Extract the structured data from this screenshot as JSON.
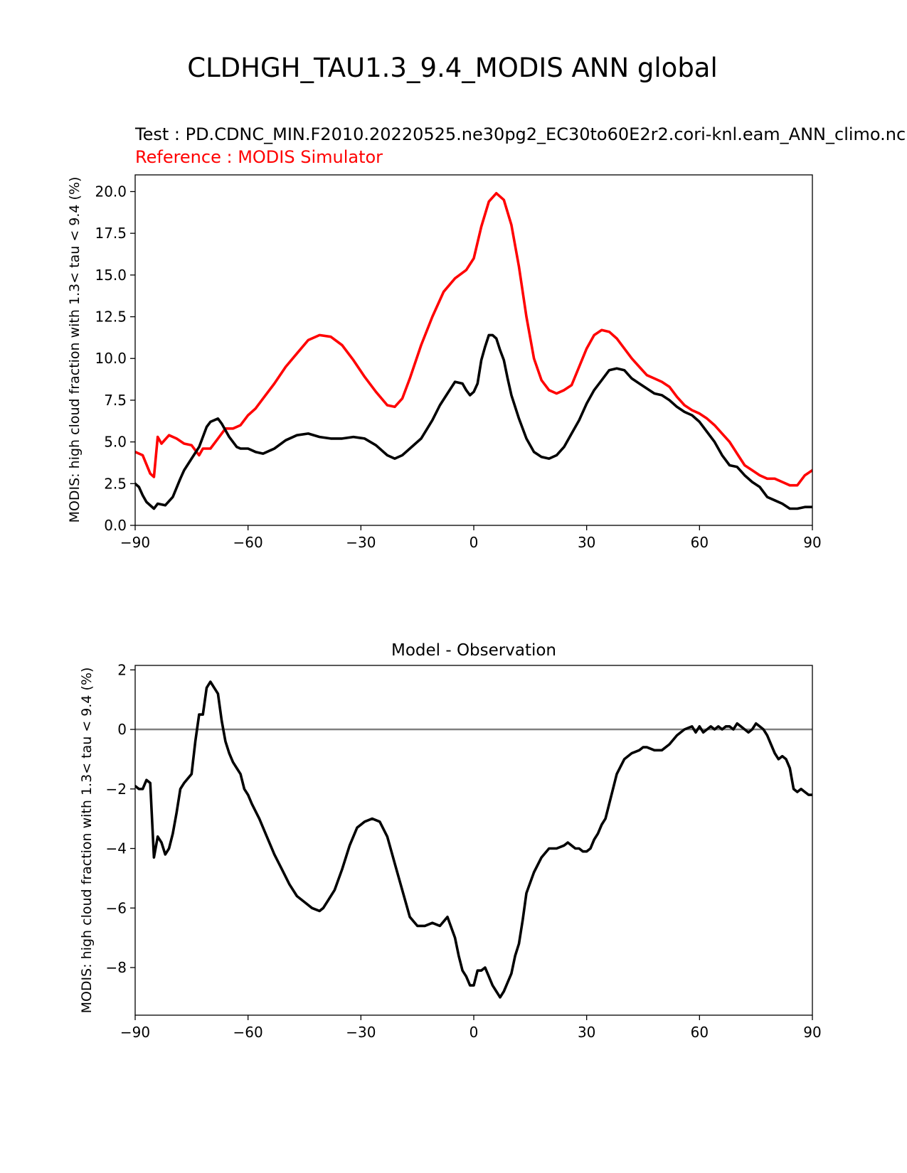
{
  "figure": {
    "suptitle": "CLDHGH_TAU1.3_9.4_MODIS ANN global"
  },
  "colors": {
    "test": "#000000",
    "reference": "#ff0000",
    "zero_line": "#808080"
  },
  "chart_data": [
    {
      "type": "line",
      "title_lines": [
        {
          "text": "Test : PD.CDNC_MIN.F2010.20220525.ne30pg2_EC30to60E2r2.cori-knl.eam_ANN_climo.nc",
          "color": "#000000"
        },
        {
          "text": "Reference : MODIS Simulator",
          "color": "#ff0000"
        }
      ],
      "xlabel": "",
      "ylabel": "MODIS: high cloud fraction with 1.3< tau < 9.4 (%)",
      "xlim": [
        -90,
        90
      ],
      "ylim": [
        0,
        21
      ],
      "xticks": [
        "−90",
        "−60",
        "−30",
        "0",
        "30",
        "60",
        "90"
      ],
      "xtick_values": [
        -90,
        -60,
        -30,
        0,
        30,
        60,
        90
      ],
      "yticks": [
        "0.0",
        "2.5",
        "5.0",
        "7.5",
        "10.0",
        "12.5",
        "15.0",
        "17.5",
        "20.0"
      ],
      "ytick_values": [
        0,
        2.5,
        5,
        7.5,
        10,
        12.5,
        15,
        17.5,
        20
      ],
      "series": [
        {
          "color": "#ff0000",
          "x": [
            -90,
            -88,
            -86,
            -85,
            -84,
            -83,
            -81,
            -79,
            -77,
            -75,
            -73,
            -72,
            -70,
            -68,
            -66,
            -64,
            -62,
            -60,
            -58,
            -56,
            -53,
            -50,
            -47,
            -44,
            -41,
            -38,
            -35,
            -32,
            -29,
            -26,
            -23,
            -21,
            -19,
            -17,
            -14,
            -11,
            -8,
            -5,
            -2,
            0,
            2,
            4,
            6,
            8,
            10,
            12,
            14,
            16,
            18,
            20,
            22,
            24,
            26,
            28,
            30,
            32,
            34,
            36,
            38,
            40,
            42,
            44,
            46,
            48,
            50,
            52,
            54,
            56,
            58,
            60,
            62,
            64,
            66,
            68,
            70,
            72,
            74,
            76,
            78,
            80,
            82,
            84,
            86,
            88,
            90
          ],
          "y": [
            4.4,
            4.2,
            3.1,
            2.9,
            5.3,
            4.9,
            5.4,
            5.2,
            4.9,
            4.8,
            4.2,
            4.6,
            4.6,
            5.2,
            5.8,
            5.8,
            6.0,
            6.6,
            7.0,
            7.6,
            8.5,
            9.5,
            10.3,
            11.1,
            11.4,
            11.3,
            10.8,
            9.9,
            8.9,
            8.0,
            7.2,
            7.1,
            7.6,
            8.8,
            10.8,
            12.5,
            14.0,
            14.8,
            15.3,
            16.0,
            17.9,
            19.4,
            19.9,
            19.5,
            18.0,
            15.5,
            12.5,
            10.0,
            8.7,
            8.1,
            7.9,
            8.1,
            8.4,
            9.5,
            10.6,
            11.4,
            11.7,
            11.6,
            11.2,
            10.6,
            10.0,
            9.5,
            9.0,
            8.8,
            8.6,
            8.3,
            7.7,
            7.2,
            6.9,
            6.7,
            6.4,
            6.0,
            5.5,
            5.0,
            4.3,
            3.6,
            3.3,
            3.0,
            2.8,
            2.8,
            2.6,
            2.4,
            2.4,
            3.0,
            3.3
          ]
        },
        {
          "color": "#000000",
          "x": [
            -90,
            -89,
            -88,
            -87,
            -85,
            -84,
            -82,
            -80,
            -78,
            -77,
            -75,
            -73,
            -71,
            -70,
            -68,
            -67,
            -65,
            -63,
            -62,
            -60,
            -58,
            -56,
            -53,
            -50,
            -47,
            -44,
            -41,
            -38,
            -35,
            -32,
            -29,
            -26,
            -23,
            -21,
            -19,
            -17,
            -14,
            -11,
            -9,
            -7,
            -5,
            -3,
            -2,
            -1,
            0,
            1,
            2,
            3,
            4,
            5,
            6,
            7,
            8,
            9,
            10,
            12,
            14,
            16,
            18,
            20,
            22,
            24,
            26,
            28,
            30,
            32,
            34,
            36,
            38,
            40,
            42,
            44,
            46,
            48,
            50,
            52,
            54,
            56,
            58,
            60,
            62,
            64,
            66,
            68,
            70,
            72,
            74,
            76,
            78,
            80,
            82,
            84,
            86,
            88,
            90
          ],
          "y": [
            2.5,
            2.3,
            1.8,
            1.4,
            1.0,
            1.3,
            1.2,
            1.7,
            2.8,
            3.3,
            4.0,
            4.7,
            5.9,
            6.2,
            6.4,
            6.1,
            5.3,
            4.7,
            4.6,
            4.6,
            4.4,
            4.3,
            4.6,
            5.1,
            5.4,
            5.5,
            5.3,
            5.2,
            5.2,
            5.3,
            5.2,
            4.8,
            4.2,
            4.0,
            4.2,
            4.6,
            5.2,
            6.3,
            7.2,
            7.9,
            8.6,
            8.5,
            8.1,
            7.8,
            8.0,
            8.5,
            9.9,
            10.7,
            11.4,
            11.4,
            11.2,
            10.5,
            9.9,
            8.8,
            7.8,
            6.4,
            5.2,
            4.4,
            4.1,
            4.0,
            4.2,
            4.7,
            5.5,
            6.3,
            7.3,
            8.1,
            8.7,
            9.3,
            9.4,
            9.3,
            8.8,
            8.5,
            8.2,
            7.9,
            7.8,
            7.5,
            7.1,
            6.8,
            6.6,
            6.2,
            5.6,
            5.0,
            4.2,
            3.6,
            3.5,
            3.0,
            2.6,
            2.3,
            1.7,
            1.5,
            1.3,
            1.0,
            1.0,
            1.1,
            1.1
          ]
        }
      ]
    },
    {
      "type": "line",
      "title": "Model - Observation",
      "xlabel": "",
      "ylabel": "MODIS: high cloud fraction with 1.3< tau < 9.4 (%)",
      "xlim": [
        -90,
        90
      ],
      "ylim": [
        -9.6,
        2.15
      ],
      "xticks": [
        "−90",
        "−60",
        "−30",
        "0",
        "30",
        "60",
        "90"
      ],
      "xtick_values": [
        -90,
        -60,
        -30,
        0,
        30,
        60,
        90
      ],
      "yticks": [
        "−8",
        "−6",
        "−4",
        "−2",
        "0",
        "2"
      ],
      "ytick_values": [
        -8,
        -6,
        -4,
        -2,
        0,
        2
      ],
      "reference_line": 0,
      "series": [
        {
          "color": "#000000",
          "x": [
            -90,
            -89,
            -88,
            -87,
            -86,
            -85,
            -84,
            -83,
            -82,
            -81,
            -80,
            -79,
            -78,
            -77,
            -75,
            -74,
            -73,
            -72,
            -71,
            -70,
            -69,
            -68,
            -67,
            -66,
            -65,
            -64,
            -63,
            -62,
            -61,
            -60,
            -59,
            -57,
            -55,
            -53,
            -51,
            -49,
            -47,
            -45,
            -43,
            -41,
            -40,
            -39,
            -37,
            -35,
            -33,
            -31,
            -29,
            -27,
            -25,
            -23,
            -21,
            -19,
            -17,
            -15,
            -13,
            -11,
            -9,
            -7,
            -5,
            -4,
            -3,
            -2,
            -1,
            0,
            1,
            2,
            3,
            4,
            5,
            6,
            7,
            8,
            9,
            10,
            11,
            12,
            13,
            14,
            16,
            18,
            20,
            22,
            24,
            25,
            26,
            27,
            28,
            29,
            30,
            31,
            32,
            33,
            34,
            35,
            36,
            37,
            38,
            40,
            42,
            44,
            45,
            46,
            48,
            50,
            52,
            54,
            56,
            58,
            59,
            60,
            61,
            62,
            63,
            64,
            65,
            66,
            67,
            68,
            69,
            70,
            71,
            72,
            73,
            74,
            75,
            76,
            77,
            78,
            79,
            80,
            81,
            82,
            83,
            84,
            85,
            86,
            87,
            88,
            89,
            90
          ],
          "y": [
            -1.9,
            -2.0,
            -2.0,
            -1.7,
            -1.8,
            -4.3,
            -3.6,
            -3.8,
            -4.2,
            -4.0,
            -3.5,
            -2.8,
            -2.0,
            -1.8,
            -1.5,
            -0.4,
            0.5,
            0.5,
            1.4,
            1.6,
            1.4,
            1.2,
            0.3,
            -0.4,
            -0.8,
            -1.1,
            -1.3,
            -1.5,
            -2.0,
            -2.2,
            -2.5,
            -3.0,
            -3.6,
            -4.2,
            -4.7,
            -5.2,
            -5.6,
            -5.8,
            -6.0,
            -6.1,
            -6.0,
            -5.8,
            -5.4,
            -4.7,
            -3.9,
            -3.3,
            -3.1,
            -3.0,
            -3.1,
            -3.6,
            -4.5,
            -5.4,
            -6.3,
            -6.6,
            -6.6,
            -6.5,
            -6.6,
            -6.3,
            -7.0,
            -7.6,
            -8.1,
            -8.3,
            -8.6,
            -8.6,
            -8.1,
            -8.1,
            -8.0,
            -8.3,
            -8.6,
            -8.8,
            -9.0,
            -8.8,
            -8.5,
            -8.2,
            -7.6,
            -7.2,
            -6.4,
            -5.5,
            -4.8,
            -4.3,
            -4.0,
            -4.0,
            -3.9,
            -3.8,
            -3.9,
            -4.0,
            -4.0,
            -4.1,
            -4.1,
            -4.0,
            -3.7,
            -3.5,
            -3.2,
            -3.0,
            -2.5,
            -2.0,
            -1.5,
            -1.0,
            -0.8,
            -0.7,
            -0.6,
            -0.6,
            -0.7,
            -0.7,
            -0.5,
            -0.2,
            0.0,
            0.1,
            -0.1,
            0.1,
            -0.1,
            0.0,
            0.1,
            0.0,
            0.1,
            0.0,
            0.1,
            0.1,
            0.0,
            0.2,
            0.1,
            0.0,
            -0.1,
            0.0,
            0.2,
            0.1,
            0.0,
            -0.2,
            -0.5,
            -0.8,
            -1.0,
            -0.9,
            -1.0,
            -1.3,
            -2.0,
            -2.1,
            -2.0,
            -2.1,
            -2.2,
            -2.2
          ]
        }
      ]
    }
  ]
}
